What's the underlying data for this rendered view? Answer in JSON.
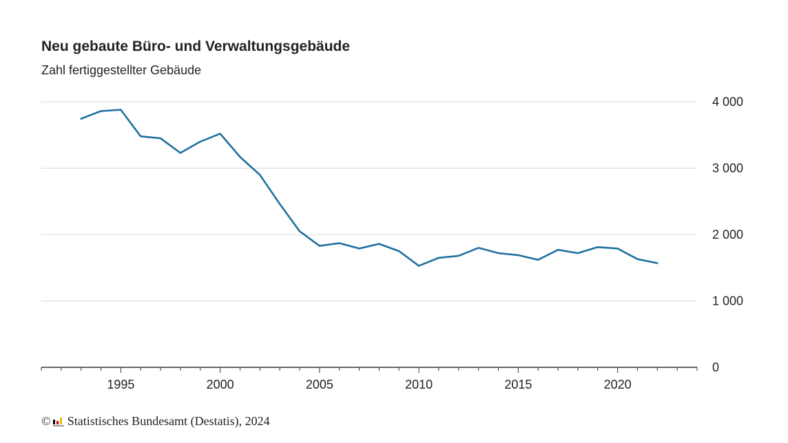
{
  "chart_data": {
    "type": "line",
    "title": "Neu gebaute Büro- und Verwaltungsgebäude",
    "subtitle": "Zahl fertiggestellter Gebäude",
    "xlabel": "",
    "ylabel": "",
    "x": [
      1993,
      1994,
      1995,
      1996,
      1997,
      1998,
      1999,
      2000,
      2001,
      2002,
      2003,
      2004,
      2005,
      2006,
      2007,
      2008,
      2009,
      2010,
      2011,
      2012,
      2013,
      2014,
      2015,
      2016,
      2017,
      2018,
      2019,
      2020,
      2021,
      2022
    ],
    "series": [
      {
        "values": [
          3745,
          3860,
          3880,
          3480,
          3450,
          3230,
          3400,
          3520,
          3170,
          2900,
          2460,
          2050,
          1830,
          1870,
          1790,
          1860,
          1750,
          1530,
          1650,
          1680,
          1800,
          1720,
          1690,
          1620,
          1770,
          1720,
          1810,
          1790,
          1630,
          1570
        ],
        "color": "#1f6f9f"
      }
    ],
    "xlim": [
      1991,
      2024
    ],
    "ylim": [
      0,
      4000
    ],
    "x_ticks": [
      1995,
      2000,
      2005,
      2010,
      2015,
      2020
    ],
    "x_tick_labels": [
      "1995",
      "2000",
      "2005",
      "2010",
      "2015",
      "2020"
    ],
    "y_ticks": [
      0,
      1000,
      2000,
      3000,
      4000
    ],
    "y_tick_labels": [
      "0",
      "1 000",
      "2 000",
      "3 000",
      "4 000"
    ],
    "grid": true,
    "y_axis_side": "right",
    "legend": "none"
  },
  "footer": {
    "copyright": "©",
    "source": "Statistisches Bundesamt (Destatis), 2024",
    "logo_icon": "destatis-logo-icon",
    "logo_colors": [
      "#000000",
      "#d40000",
      "#f2b700"
    ]
  }
}
